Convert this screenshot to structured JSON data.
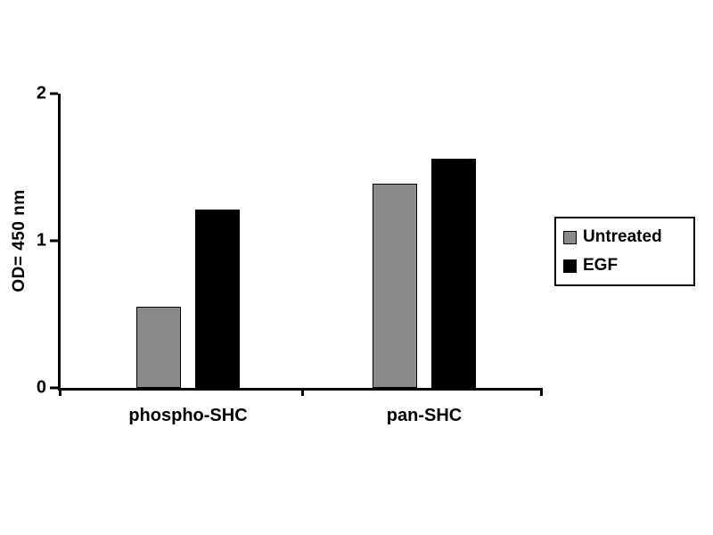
{
  "chart_data": {
    "type": "bar",
    "title": "",
    "xlabel": "",
    "ylabel": "OD= 450 nm",
    "categories": [
      "phospho-SHC",
      "pan-SHC"
    ],
    "series": [
      {
        "name": "Untreated",
        "color": "#8a8a8a",
        "values": [
          0.55,
          1.39
        ]
      },
      {
        "name": "EGF",
        "color": "#000000",
        "values": [
          1.21,
          1.56
        ]
      }
    ],
    "ylim": [
      0,
      2
    ],
    "yticks": [
      0,
      1,
      2
    ],
    "legend_position": "right",
    "grid": false
  }
}
